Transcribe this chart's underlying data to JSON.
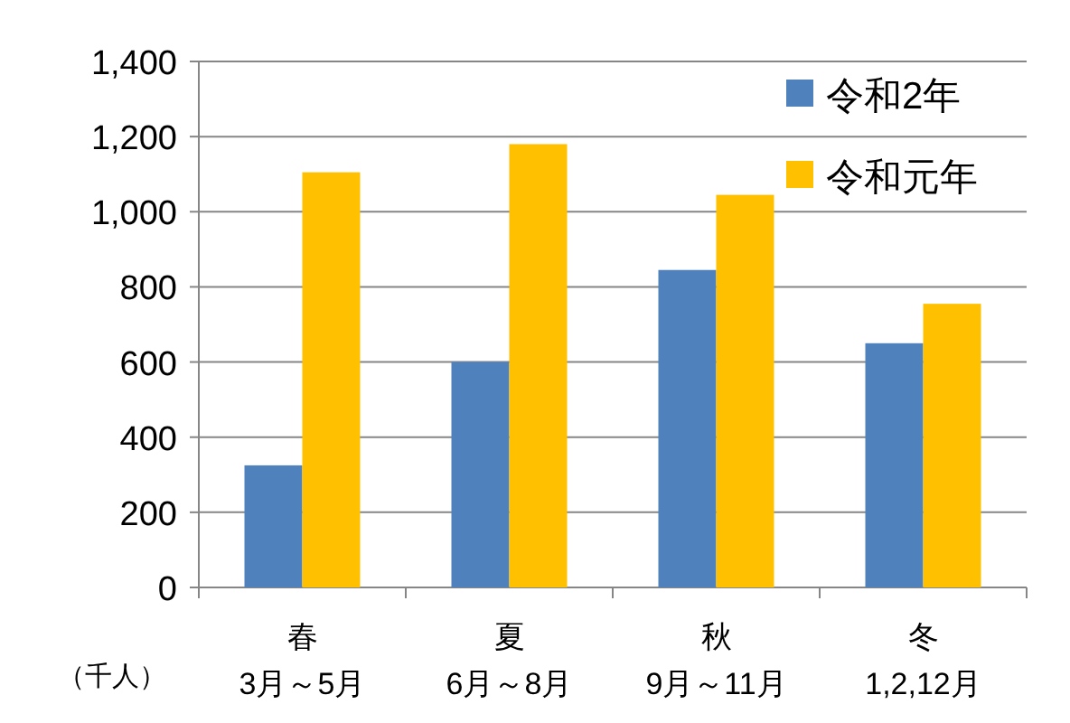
{
  "chart_data": {
    "type": "bar",
    "ylabel": "（千人）",
    "categories": [
      "春\n3月～5月",
      "夏\n6月～8月",
      "秋\n9月～11月",
      "冬\n1,2,12月"
    ],
    "series": [
      {
        "name": "令和2年",
        "color": "#4f81bd",
        "values": [
          325,
          600,
          845,
          650
        ]
      },
      {
        "name": "令和元年",
        "color": "#ffc000",
        "values": [
          1105,
          1180,
          1045,
          755
        ]
      }
    ],
    "ylim": [
      0,
      1400
    ],
    "yticks": [
      0,
      {
        "value": 200,
        "label": "200"
      },
      {
        "value": 400,
        "label": "400"
      },
      {
        "value": 600,
        "label": "600"
      },
      {
        "value": 800,
        "label": "800"
      },
      {
        "value": 1000,
        "label": "1,000"
      },
      {
        "value": 1200,
        "label": "1,200"
      },
      {
        "value": 1400,
        "label": "1,400"
      }
    ],
    "grid": "y",
    "legend": "top right"
  }
}
